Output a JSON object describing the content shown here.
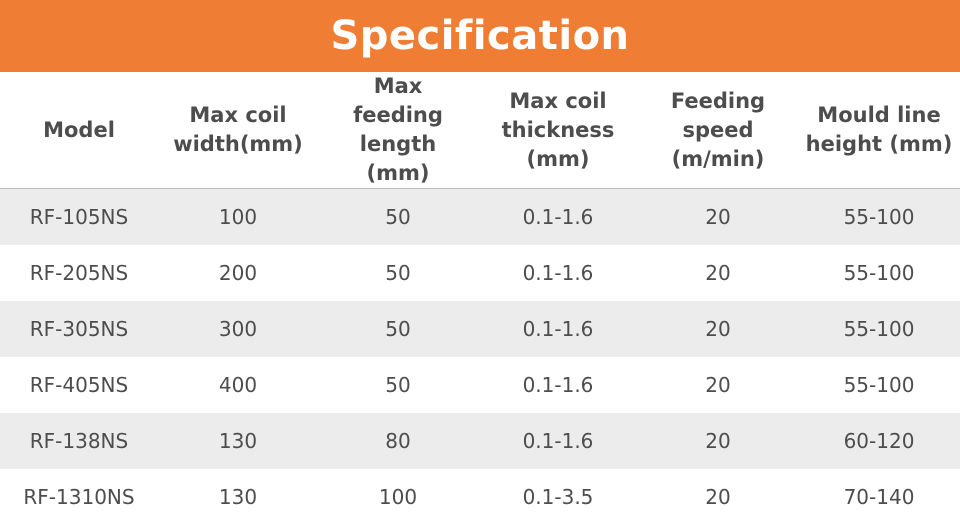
{
  "title": "Specification",
  "headers": [
    "Model",
    "Max coil width(mm)",
    "Max feeding length (mm)",
    "Max coil thickness (mm)",
    "Feeding speed (m/min)",
    "Mould line height (mm)"
  ],
  "rows": [
    [
      "RF-105NS",
      "100",
      "50",
      "0.1-1.6",
      "20",
      "55-100"
    ],
    [
      "RF-205NS",
      "200",
      "50",
      "0.1-1.6",
      "20",
      "55-100"
    ],
    [
      "RF-305NS",
      "300",
      "50",
      "0.1-1.6",
      "20",
      "55-100"
    ],
    [
      "RF-405NS",
      "400",
      "50",
      "0.1-1.6",
      "20",
      "55-100"
    ],
    [
      "RF-138NS",
      "130",
      "80",
      "0.1-1.6",
      "20",
      "60-120"
    ],
    [
      "RF-1310NS",
      "130",
      "100",
      "0.1-3.5",
      "20",
      "70-140"
    ]
  ],
  "colors": {
    "banner": "#ef7d33",
    "row_shade": "#ececec",
    "text": "#4d4d4d"
  }
}
